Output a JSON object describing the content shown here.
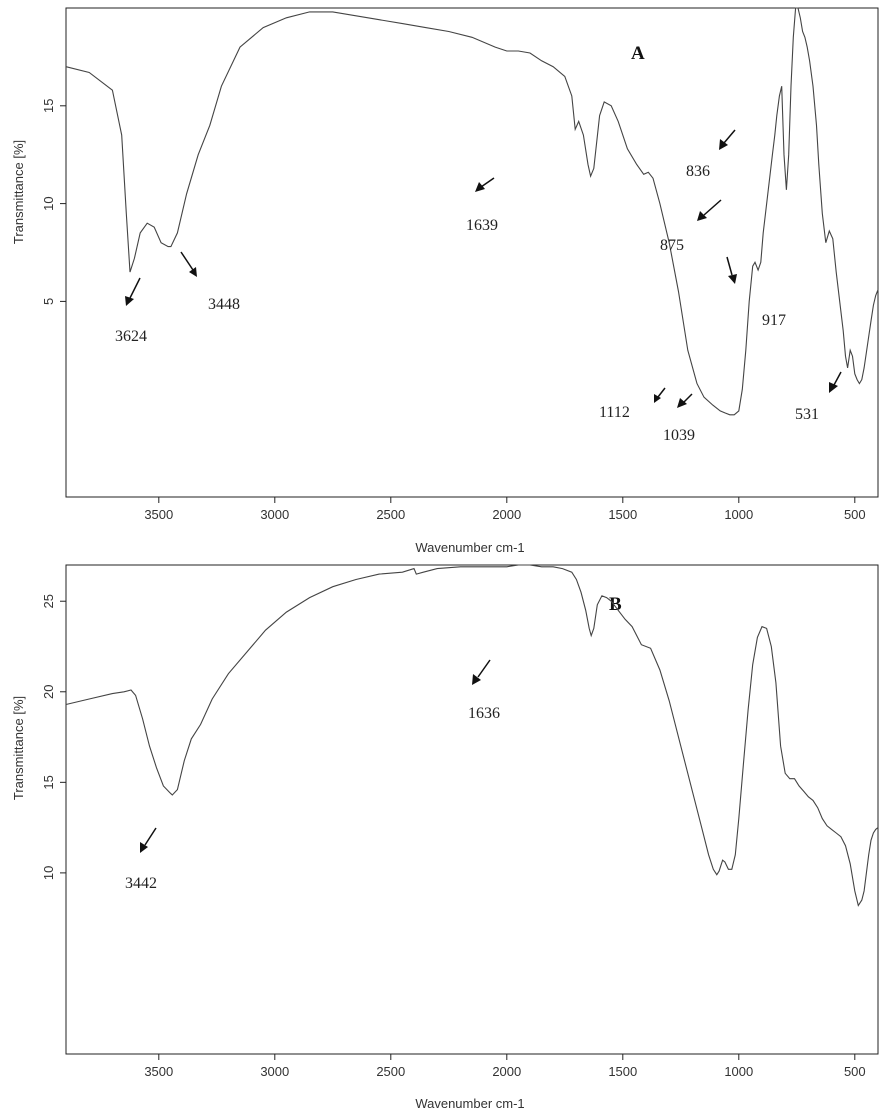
{
  "chart_data": [
    {
      "type": "line",
      "panel_label": "A",
      "xlabel": "Wavenumber cm-1",
      "ylabel": "Transmittance [%]",
      "x_reversed": true,
      "xlim": [
        3900,
        400
      ],
      "ylim": [
        -5,
        20
      ],
      "x_ticks": [
        3500,
        3000,
        2500,
        2000,
        1500,
        1000,
        500
      ],
      "x_tick_labels": [
        "3500",
        "3000",
        "2500",
        "2000",
        "1500",
        "1000",
        "500"
      ],
      "y_ticks": [
        5,
        10,
        15
      ],
      "y_tick_labels": [
        "5",
        "10",
        "15"
      ],
      "grid": false,
      "series": [
        {
          "x": [
            3900,
            3800,
            3700,
            3660,
            3640,
            3624,
            3605,
            3580,
            3550,
            3520,
            3490,
            3460,
            3448,
            3420,
            3380,
            3330,
            3280,
            3230,
            3150,
            3050,
            2950,
            2850,
            2750,
            2650,
            2550,
            2450,
            2350,
            2250,
            2150,
            2050,
            2000,
            1950,
            1900,
            1850,
            1800,
            1750,
            1720,
            1705,
            1690,
            1670,
            1650,
            1639,
            1625,
            1600,
            1580,
            1550,
            1520,
            1480,
            1440,
            1410,
            1390,
            1370,
            1340,
            1300,
            1260,
            1220,
            1180,
            1150,
            1112,
            1080,
            1060,
            1039,
            1020,
            1000,
            985,
            970,
            955,
            940,
            930,
            917,
            905,
            895,
            885,
            875,
            865,
            855,
            845,
            836,
            825,
            815,
            805,
            795,
            785,
            775,
            765,
            755,
            745,
            735,
            725,
            715,
            705,
            695,
            680,
            665,
            655,
            640,
            625,
            610,
            595,
            580,
            565,
            550,
            540,
            531,
            520,
            510,
            500,
            490,
            480,
            470,
            460,
            450,
            440,
            430,
            420,
            410,
            400
          ],
          "y": [
            17.0,
            16.7,
            15.8,
            13.5,
            9.5,
            6.5,
            7.2,
            8.5,
            9.0,
            8.8,
            8.0,
            7.8,
            7.8,
            8.5,
            10.5,
            12.5,
            14.0,
            16.0,
            18.0,
            19.0,
            19.5,
            19.8,
            19.8,
            19.6,
            19.4,
            19.2,
            19.0,
            18.8,
            18.5,
            18.0,
            17.8,
            17.8,
            17.7,
            17.3,
            17.0,
            16.5,
            15.5,
            13.8,
            14.2,
            13.5,
            12.0,
            11.4,
            11.8,
            14.5,
            15.2,
            15.0,
            14.2,
            12.8,
            12.0,
            11.5,
            11.6,
            11.3,
            10.0,
            8.0,
            5.5,
            2.5,
            0.8,
            0.1,
            -0.3,
            -0.6,
            -0.7,
            -0.8,
            -0.8,
            -0.6,
            0.5,
            2.5,
            5.0,
            6.8,
            7.0,
            6.6,
            7.0,
            8.5,
            9.5,
            10.5,
            11.5,
            12.5,
            13.5,
            14.5,
            15.5,
            16.0,
            12.5,
            10.7,
            12.5,
            16.0,
            18.5,
            20.0,
            20.0,
            19.5,
            18.8,
            18.5,
            18.0,
            17.3,
            16.0,
            14.0,
            12.0,
            9.5,
            8.0,
            8.6,
            8.2,
            6.5,
            5.0,
            3.5,
            2.2,
            1.6,
            2.5,
            2.2,
            1.3,
            1.0,
            0.8,
            1.0,
            1.6,
            2.4,
            3.2,
            4.0,
            4.8,
            5.3,
            5.6
          ]
        }
      ],
      "annotations": [
        {
          "label": "3624"
        },
        {
          "label": "3448"
        },
        {
          "label": "1639"
        },
        {
          "label": "836"
        },
        {
          "label": "875"
        },
        {
          "label": "917"
        },
        {
          "label": "1112"
        },
        {
          "label": "1039"
        },
        {
          "label": "531"
        }
      ]
    },
    {
      "type": "line",
      "panel_label": "B",
      "xlabel": "Wavenumber cm-1",
      "ylabel": "Transmittance [%]",
      "x_reversed": true,
      "xlim": [
        3900,
        400
      ],
      "ylim": [
        0,
        27
      ],
      "x_ticks": [
        3500,
        3000,
        2500,
        2000,
        1500,
        1000,
        500
      ],
      "x_tick_labels": [
        "3500",
        "3000",
        "2500",
        "2000",
        "1500",
        "1000",
        "500"
      ],
      "y_ticks": [
        10,
        15,
        20,
        25
      ],
      "y_tick_labels": [
        "10",
        "15",
        "20",
        "25"
      ],
      "grid": false,
      "series": [
        {
          "x": [
            3900,
            3800,
            3700,
            3650,
            3620,
            3600,
            3570,
            3540,
            3510,
            3480,
            3450,
            3442,
            3420,
            3390,
            3360,
            3320,
            3270,
            3200,
            3120,
            3040,
            2950,
            2850,
            2750,
            2650,
            2550,
            2450,
            2400,
            2390,
            2360,
            2300,
            2200,
            2100,
            2000,
            1950,
            1900,
            1850,
            1800,
            1760,
            1720,
            1700,
            1680,
            1660,
            1645,
            1636,
            1625,
            1610,
            1590,
            1570,
            1550,
            1520,
            1490,
            1460,
            1420,
            1380,
            1340,
            1300,
            1250,
            1200,
            1160,
            1130,
            1110,
            1095,
            1085,
            1070,
            1060,
            1045,
            1030,
            1015,
            1000,
            980,
            960,
            940,
            920,
            900,
            880,
            860,
            840,
            820,
            800,
            780,
            760,
            740,
            720,
            700,
            680,
            660,
            640,
            620,
            600,
            580,
            560,
            540,
            520,
            500,
            485,
            470,
            460,
            450,
            440,
            430,
            420,
            410,
            400
          ],
          "y": [
            19.3,
            19.6,
            19.9,
            20.0,
            20.1,
            19.8,
            18.5,
            17.0,
            15.8,
            14.8,
            14.4,
            14.3,
            14.6,
            16.2,
            17.4,
            18.2,
            19.6,
            21.0,
            22.2,
            23.4,
            24.4,
            25.2,
            25.8,
            26.2,
            26.5,
            26.6,
            26.8,
            26.5,
            26.6,
            26.8,
            26.9,
            26.9,
            26.9,
            27.0,
            27.0,
            26.9,
            26.9,
            26.8,
            26.6,
            26.2,
            25.5,
            24.5,
            23.5,
            23.1,
            23.5,
            24.8,
            25.3,
            25.2,
            25.0,
            24.5,
            24.0,
            23.6,
            22.6,
            22.4,
            21.2,
            19.5,
            17.0,
            14.5,
            12.5,
            11.0,
            10.2,
            9.9,
            10.1,
            10.7,
            10.6,
            10.2,
            10.2,
            11.0,
            13.0,
            16.0,
            19.0,
            21.5,
            23.0,
            23.6,
            23.5,
            22.5,
            20.5,
            17.0,
            15.5,
            15.2,
            15.2,
            14.8,
            14.5,
            14.2,
            14.0,
            13.6,
            13.0,
            12.6,
            12.4,
            12.2,
            12.0,
            11.5,
            10.5,
            9.0,
            8.2,
            8.5,
            9.0,
            10.0,
            11.0,
            11.8,
            12.2,
            12.4,
            12.5
          ]
        }
      ],
      "annotations": [
        {
          "label": "1636"
        },
        {
          "label": "3442"
        }
      ]
    }
  ]
}
